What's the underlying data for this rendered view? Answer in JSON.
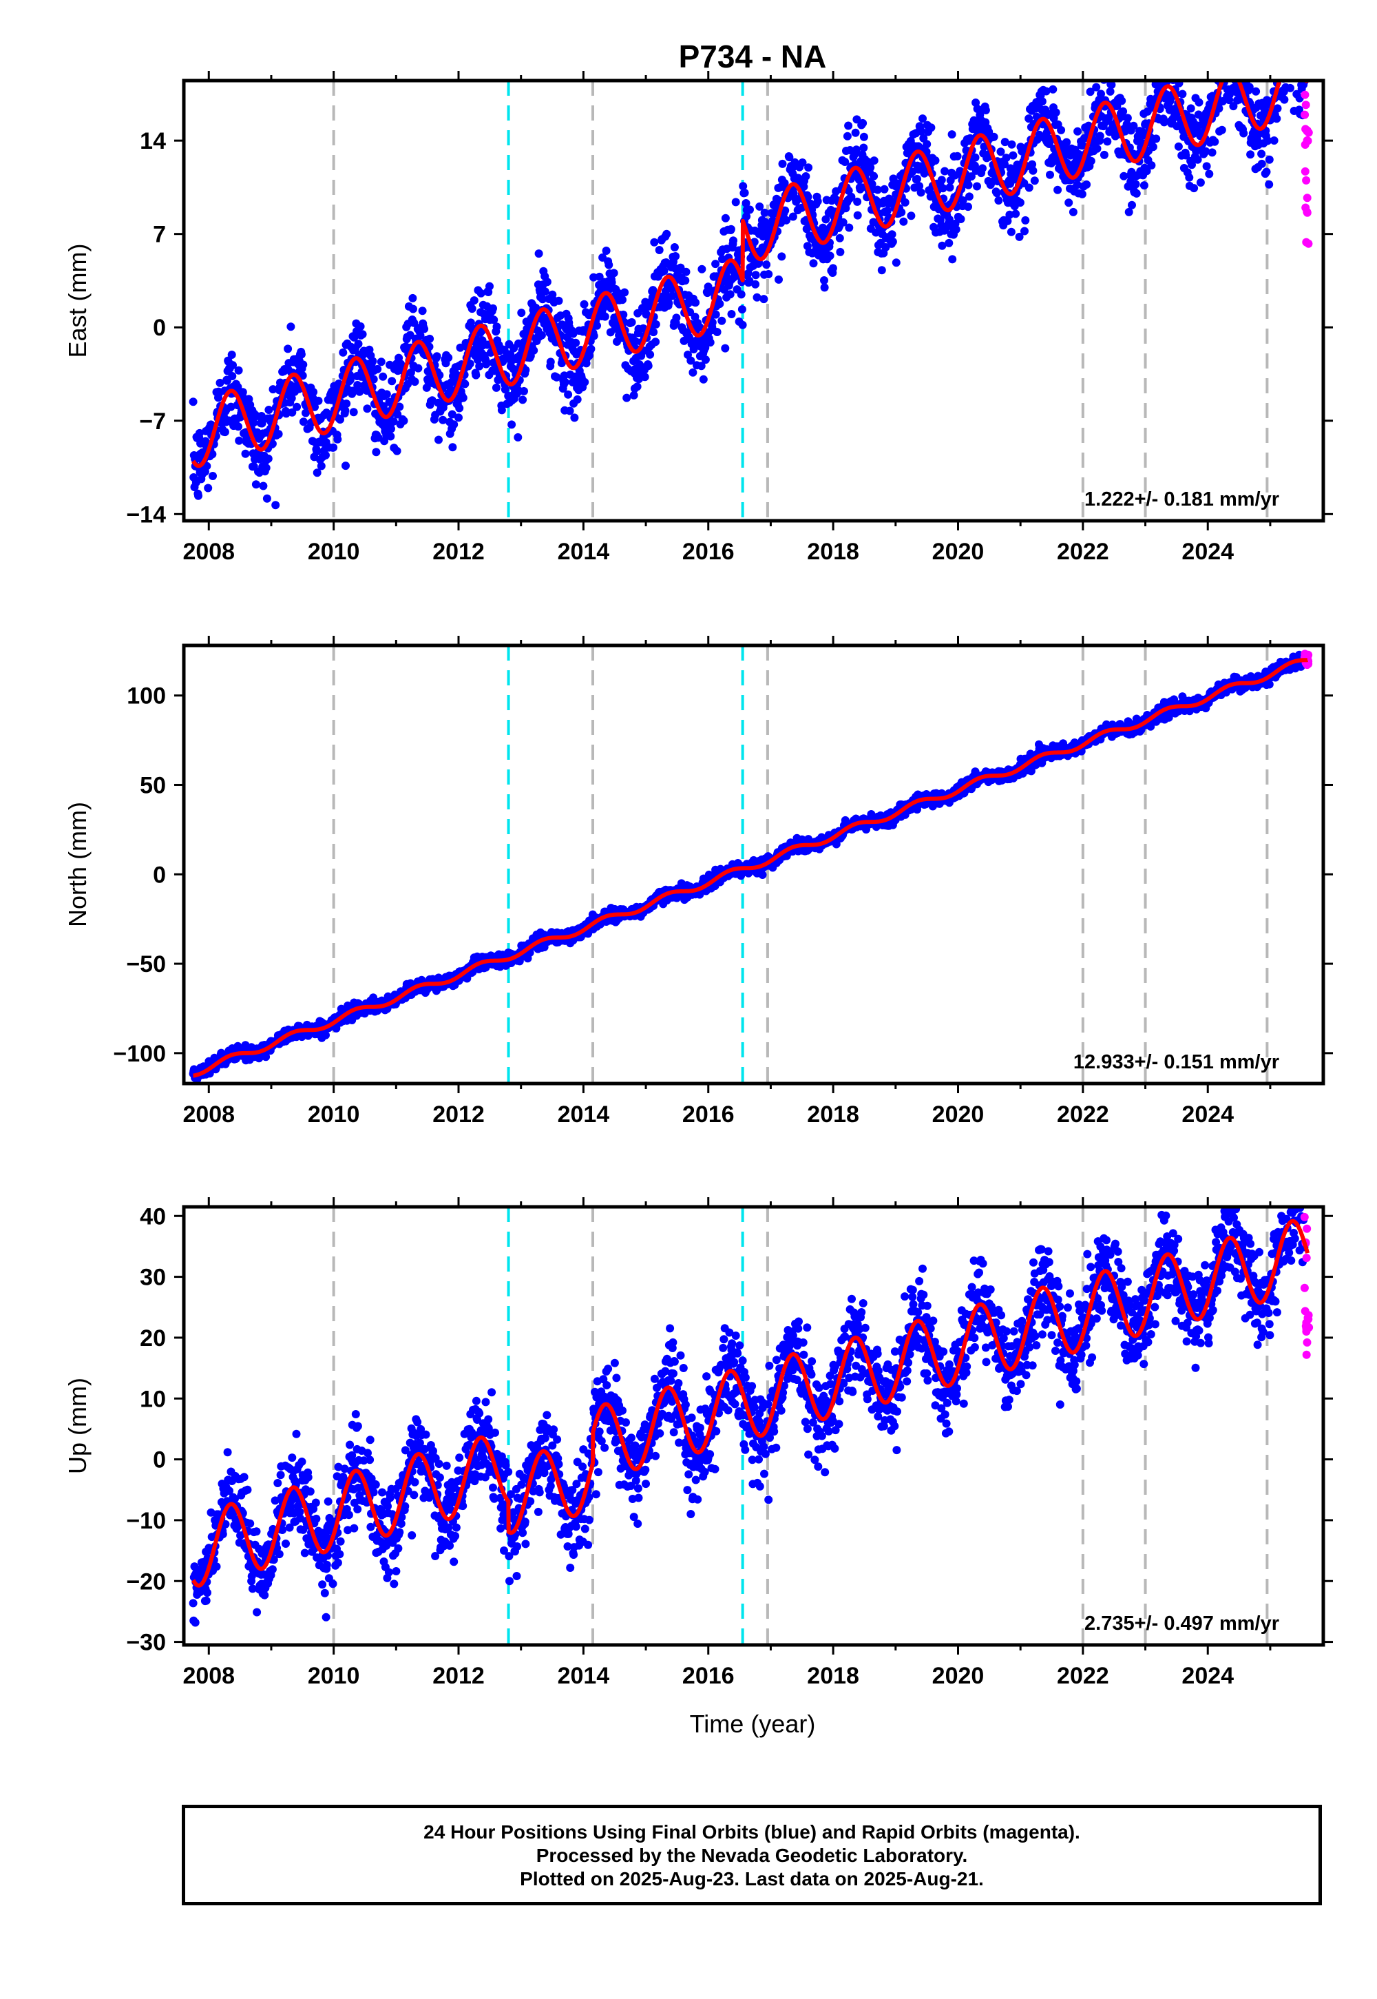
{
  "title": "P734 - NA",
  "colors": {
    "final_orbits": "#0000ff",
    "rapid_orbits": "#ff00ff",
    "model_fit": "#ff0000",
    "equipment_change": "#b8b8b8",
    "earthquake": "#00e5ee"
  },
  "x_axis": {
    "label": "Time (year)",
    "range": [
      2007.6,
      2025.85
    ],
    "ticks": [
      2008,
      2010,
      2012,
      2014,
      2016,
      2018,
      2020,
      2022,
      2024
    ]
  },
  "event_lines": {
    "gray": [
      2010.0,
      2014.15,
      2016.95,
      2022.0,
      2023.0,
      2024.95
    ],
    "cyan": [
      2012.8,
      2016.55
    ]
  },
  "footer": {
    "line1": "24 Hour Positions Using Final Orbits (blue) and Rapid Orbits (magenta).",
    "line2": "Processed by the Nevada Geodetic Laboratory.",
    "line3": "Plotted on 2025-Aug-23. Last data on 2025-Aug-21."
  },
  "chart_data": [
    {
      "type": "scatter",
      "component": "East",
      "ylabel": "East (mm)",
      "ylim": [
        -14.5,
        18.5
      ],
      "yticks": [
        14,
        7,
        0,
        -7,
        -14
      ],
      "rate_label": "1.222+/- 0.181 mm/yr",
      "fit": {
        "start_value": -8.0,
        "slope": 1.222,
        "seasonal_amplitude": 2.5,
        "offsets": [
          {
            "t": 2016.55,
            "dy": 4.5
          }
        ],
        "x_range": [
          2007.75,
          2025.6
        ]
      },
      "scatter": {
        "noise": 1.6,
        "x_range": [
          2007.75,
          2025.55
        ]
      },
      "rapid_scatter": {
        "x_range": [
          2025.55,
          2025.62
        ],
        "y_range": [
          4,
          18
        ]
      }
    },
    {
      "type": "scatter",
      "component": "North",
      "ylabel": "North (mm)",
      "ylim": [
        -117,
        128
      ],
      "yticks": [
        100,
        50,
        0,
        -50,
        -100
      ],
      "rate_label": "12.933+/- 0.151 mm/yr",
      "fit": {
        "start_value": -111,
        "slope": 12.933,
        "seasonal_amplitude": 2.0,
        "offsets": [],
        "x_range": [
          2007.75,
          2025.6
        ]
      },
      "scatter": {
        "noise": 1.8,
        "x_range": [
          2007.75,
          2025.55
        ]
      },
      "rapid_scatter": {
        "x_range": [
          2025.55,
          2025.62
        ],
        "y_range": [
          117,
          124
        ]
      }
    },
    {
      "type": "scatter",
      "component": "Up",
      "ylabel": "Up (mm)",
      "ylim": [
        -30.5,
        41.5
      ],
      "yticks": [
        40,
        30,
        20,
        10,
        0,
        -10,
        -20,
        -30
      ],
      "rate_label": "2.735+/- 0.497 mm/yr",
      "fit": {
        "start_value": -15,
        "slope": 2.735,
        "seasonal_amplitude": 6.0,
        "offsets": [
          {
            "t": 2012.8,
            "dy": -5.0
          },
          {
            "t": 2014.15,
            "dy": 5.0
          }
        ],
        "x_range": [
          2007.75,
          2025.6
        ]
      },
      "scatter": {
        "noise": 3.5,
        "x_range": [
          2007.75,
          2025.55
        ]
      },
      "rapid_scatter": {
        "x_range": [
          2025.55,
          2025.62
        ],
        "y_range": [
          17,
          40
        ]
      }
    }
  ]
}
